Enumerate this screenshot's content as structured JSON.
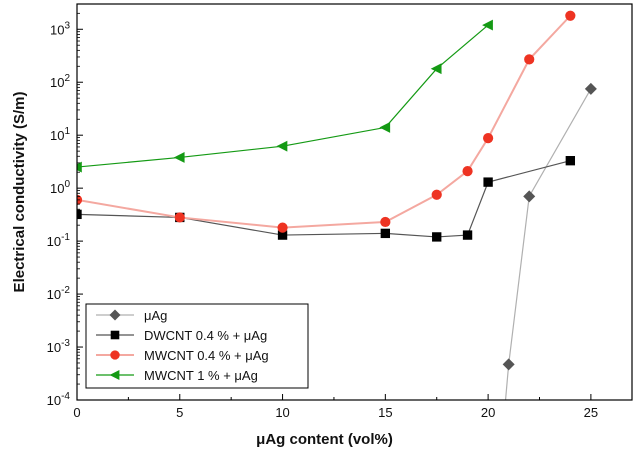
{
  "chart_data": {
    "type": "scatter",
    "xlabel": "μAg content (vol%)",
    "ylabel": "Electrical conductivity (S/m)",
    "xlim": [
      0,
      27
    ],
    "ylim": [
      0.0001,
      3000
    ],
    "y_scale": "log",
    "x_ticks": [
      {
        "value": 0,
        "label": "0"
      },
      {
        "value": 5,
        "label": "5"
      },
      {
        "value": 10,
        "label": "10"
      },
      {
        "value": 15,
        "label": "15"
      },
      {
        "value": 20,
        "label": "20"
      },
      {
        "value": 25,
        "label": "25"
      }
    ],
    "y_ticks": [
      {
        "value": 0.0001,
        "base": "10",
        "exp": "-4"
      },
      {
        "value": 0.001,
        "base": "10",
        "exp": "-3"
      },
      {
        "value": 0.01,
        "base": "10",
        "exp": "-2"
      },
      {
        "value": 0.1,
        "base": "10",
        "exp": "-1"
      },
      {
        "value": 1,
        "base": "10",
        "exp": "0"
      },
      {
        "value": 10,
        "base": "10",
        "exp": "1"
      },
      {
        "value": 100,
        "base": "10",
        "exp": "2"
      },
      {
        "value": 1000,
        "base": "10",
        "exp": "3"
      }
    ],
    "legend_position": "bottom-left",
    "series": [
      {
        "name": "μAg",
        "marker": "diamond",
        "color": "#555555",
        "line_color": "#b0b0b0",
        "x": [
          21,
          22,
          25
        ],
        "y": [
          0.00047,
          0.7,
          75
        ],
        "extends_below_axis": true
      },
      {
        "name": "DWCNT 0.4 % + μAg",
        "marker": "square",
        "color": "#000000",
        "line_color": "#555555",
        "x": [
          0,
          5,
          10,
          15,
          17.5,
          19,
          20,
          24
        ],
        "y": [
          0.32,
          0.28,
          0.13,
          0.14,
          0.12,
          0.13,
          1.3,
          3.3
        ]
      },
      {
        "name": "MWCNT 0.4 % + μAg",
        "marker": "circle",
        "color": "#ee3322",
        "line_color": "#f4a8a0",
        "x": [
          0,
          5,
          10,
          15,
          17.5,
          19,
          20,
          22,
          24
        ],
        "y": [
          0.6,
          0.28,
          0.18,
          0.23,
          0.75,
          2.1,
          8.8,
          270,
          1800
        ]
      },
      {
        "name": "MWCNT 1 % + μAg",
        "marker": "triangle-left",
        "color": "#149a14",
        "line_color": "#149a14",
        "x": [
          0,
          5,
          10,
          15,
          17.5,
          20
        ],
        "y": [
          2.5,
          3.8,
          6.2,
          14,
          180,
          1200
        ]
      }
    ]
  }
}
